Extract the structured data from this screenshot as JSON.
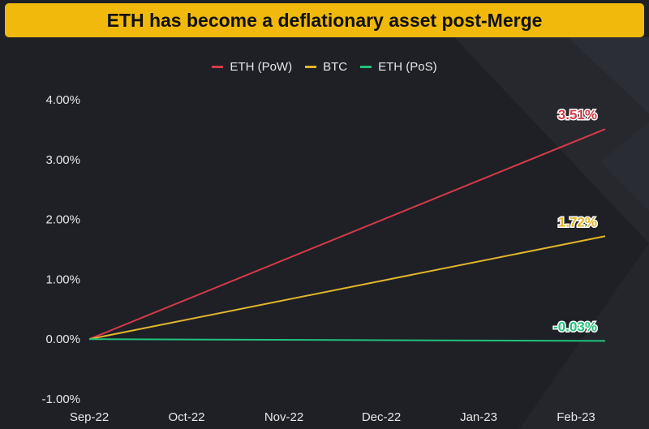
{
  "title": "ETH has become a deflationary asset post-Merge",
  "chart_data": {
    "type": "line",
    "title": "ETH has become a deflationary asset post-Merge",
    "xlabel": "",
    "ylabel": "",
    "categories": [
      "Sep-22",
      "Oct-22",
      "Nov-22",
      "Dec-22",
      "Jan-23",
      "Feb-23"
    ],
    "y_ticks": [
      4.0,
      3.0,
      2.0,
      1.0,
      0.0,
      -1.0
    ],
    "y_tick_labels": [
      "4.00%",
      "3.00%",
      "2.00%",
      "1.00%",
      "0.00%",
      "-1.00%"
    ],
    "ylim": [
      -1.0,
      4.0
    ],
    "xlim": [
      0,
      5.3
    ],
    "grid": false,
    "legend_position": "top-center",
    "series": [
      {
        "name": "ETH (PoW)",
        "color": "#d63a48",
        "x": [
          0,
          5.3
        ],
        "values": [
          0.0,
          3.51
        ],
        "end_label": "3.51%"
      },
      {
        "name": "BTC",
        "color": "#e3b52a",
        "x": [
          0,
          5.3
        ],
        "values": [
          0.0,
          1.72
        ],
        "end_label": "1.72%"
      },
      {
        "name": "ETH (PoS)",
        "color": "#21c27a",
        "x": [
          0,
          5.3
        ],
        "values": [
          0.0,
          -0.03
        ],
        "end_label": "-0.03%"
      }
    ]
  }
}
